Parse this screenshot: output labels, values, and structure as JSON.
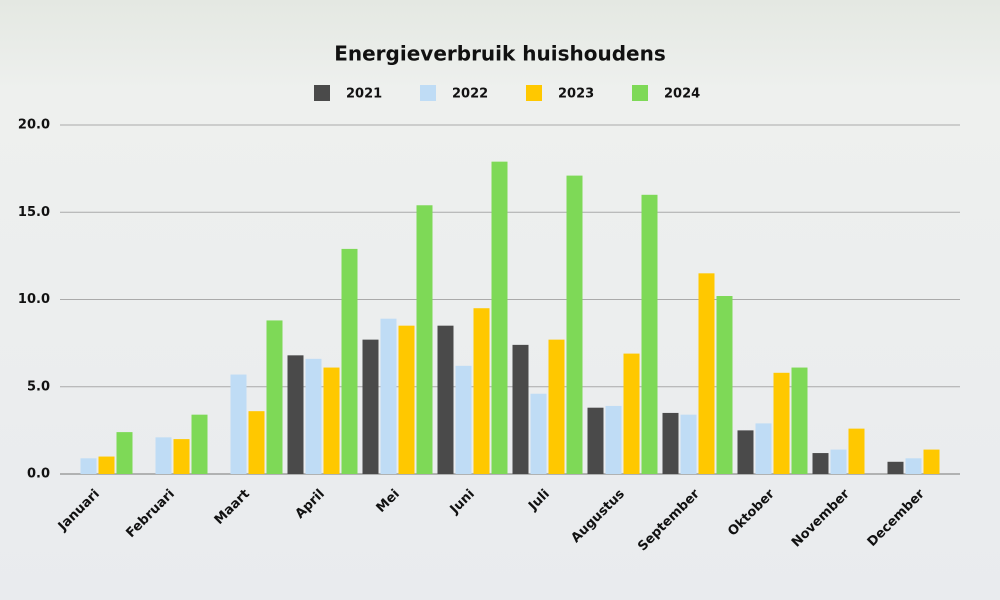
{
  "chart_data": {
    "type": "bar",
    "title": "Energieverbruik huishoudens",
    "categories": [
      "Januari",
      "Februari",
      "Maart",
      "April",
      "Mei",
      "Juni",
      "Juli",
      "Augustus",
      "September",
      "Oktober",
      "November",
      "December"
    ],
    "series": [
      {
        "name": "2021",
        "color": "#4a4a4a",
        "values": [
          null,
          null,
          null,
          6.8,
          7.7,
          8.5,
          7.4,
          3.8,
          3.5,
          2.5,
          1.2,
          0.7
        ]
      },
      {
        "name": "2022",
        "color": "#bfdcf5",
        "values": [
          0.9,
          2.1,
          5.7,
          6.6,
          8.9,
          6.2,
          4.6,
          3.9,
          3.4,
          2.9,
          1.4,
          0.9
        ]
      },
      {
        "name": "2023",
        "color": "#ffc800",
        "values": [
          1.0,
          2.0,
          3.6,
          6.1,
          8.5,
          9.5,
          7.7,
          6.9,
          11.5,
          5.8,
          2.6,
          1.4
        ]
      },
      {
        "name": "2024",
        "color": "#7ed957",
        "values": [
          2.4,
          3.4,
          8.8,
          12.9,
          15.4,
          17.9,
          17.1,
          16.0,
          10.2,
          6.1,
          null,
          null
        ]
      }
    ],
    "ylim": [
      0,
      20
    ],
    "yticks": [
      {
        "value": 0,
        "label": "0.0"
      },
      {
        "value": 5,
        "label": "5.0"
      },
      {
        "value": 10,
        "label": "10.0"
      },
      {
        "value": 15,
        "label": "15.0"
      },
      {
        "value": 20,
        "label": "20.0"
      }
    ],
    "grid": true
  }
}
